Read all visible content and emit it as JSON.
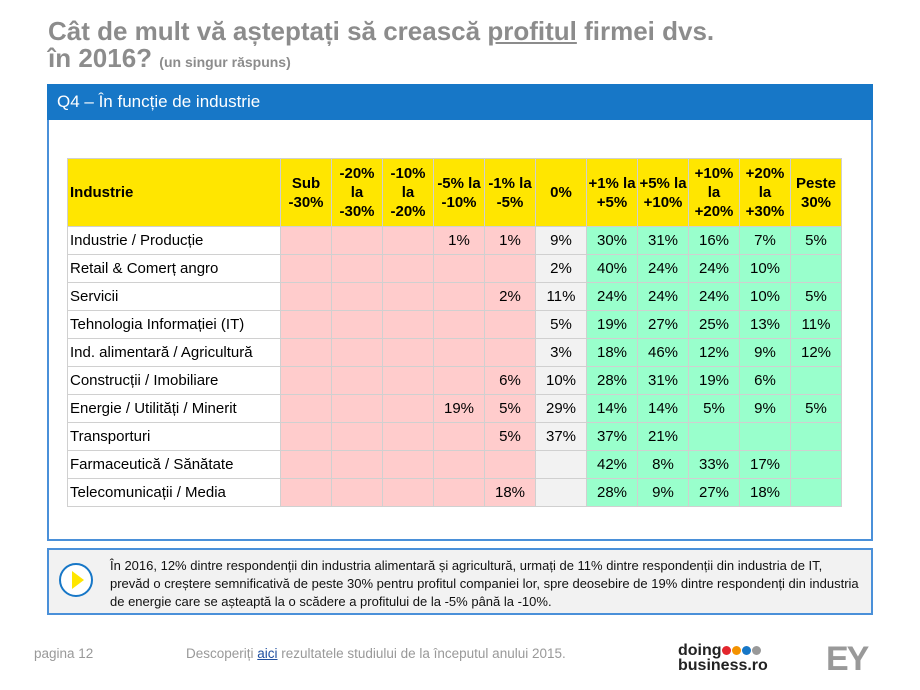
{
  "title": {
    "line1_pre": "Cât de mult vă așteptați să crească ",
    "line1_underlined": "profitul",
    "line1_post": " firmei dvs.",
    "line2": "în 2016?",
    "subtitle": "(un singur răspuns)"
  },
  "section_bar": "Q4 – În funcție de industrie",
  "table": {
    "headers": [
      "Industrie",
      "Sub -30%",
      "-20% la -30%",
      "-10% la -20%",
      "-5% la -10%",
      "-1% la -5%",
      "0%",
      "+1% la +5%",
      "+5% la +10%",
      "+10% la +20%",
      "+20% la +30%",
      "Peste 30%"
    ],
    "rows": [
      [
        "Industrie / Producție",
        "",
        "",
        "",
        "1%",
        "1%",
        "9%",
        "30%",
        "31%",
        "16%",
        "7%",
        "5%"
      ],
      [
        "Retail & Comerț angro",
        "",
        "",
        "",
        "",
        "",
        "2%",
        "40%",
        "24%",
        "24%",
        "10%",
        ""
      ],
      [
        "Servicii",
        "",
        "",
        "",
        "",
        "2%",
        "11%",
        "24%",
        "24%",
        "24%",
        "10%",
        "5%"
      ],
      [
        "Tehnologia Informației (IT)",
        "",
        "",
        "",
        "",
        "",
        "5%",
        "19%",
        "27%",
        "25%",
        "13%",
        "11%"
      ],
      [
        "Ind. alimentară / Agricultură",
        "",
        "",
        "",
        "",
        "",
        "3%",
        "18%",
        "46%",
        "12%",
        "9%",
        "12%"
      ],
      [
        "Construcții / Imobiliare",
        "",
        "",
        "",
        "",
        "6%",
        "10%",
        "28%",
        "31%",
        "19%",
        "6%",
        ""
      ],
      [
        "Energie / Utilități / Minerit",
        "",
        "",
        "",
        "19%",
        "5%",
        "29%",
        "14%",
        "14%",
        "5%",
        "9%",
        "5%"
      ],
      [
        "Transporturi",
        "",
        "",
        "",
        "",
        "5%",
        "37%",
        "37%",
        "21%",
        "",
        "",
        ""
      ],
      [
        "Farmaceutică / Sănătate",
        "",
        "",
        "",
        "",
        "",
        "",
        "42%",
        "8%",
        "33%",
        "17%",
        ""
      ],
      [
        "Telecomunicații / Media",
        "",
        "",
        "",
        "",
        "18%",
        "",
        "28%",
        "9%",
        "27%",
        "18%",
        ""
      ]
    ]
  },
  "colors": {
    "header": "#ffe600",
    "negative": "#ffcccc",
    "zero": "#f2f2f2",
    "positive": "#99ffcc",
    "accent": "#1777c7"
  },
  "note": "În 2016, 12% dintre respondenții din industria alimentară și agricultură, urmați de 11% dintre respondenții din industria de IT, prevăd o creștere semnificativă de peste 30% pentru profitul companiei lor, spre deosebire de 19% dintre respondenți din industria de energie care se așteaptă la o scădere a profitului de la -5% până la -10%.",
  "footer": {
    "page": "pagina 12",
    "text_pre": "Descoperiți ",
    "link": "aici",
    "text_post": " rezultatele studiului de la începutul anului 2015.",
    "logo1": "doing business.ro",
    "logo2": "EY"
  }
}
